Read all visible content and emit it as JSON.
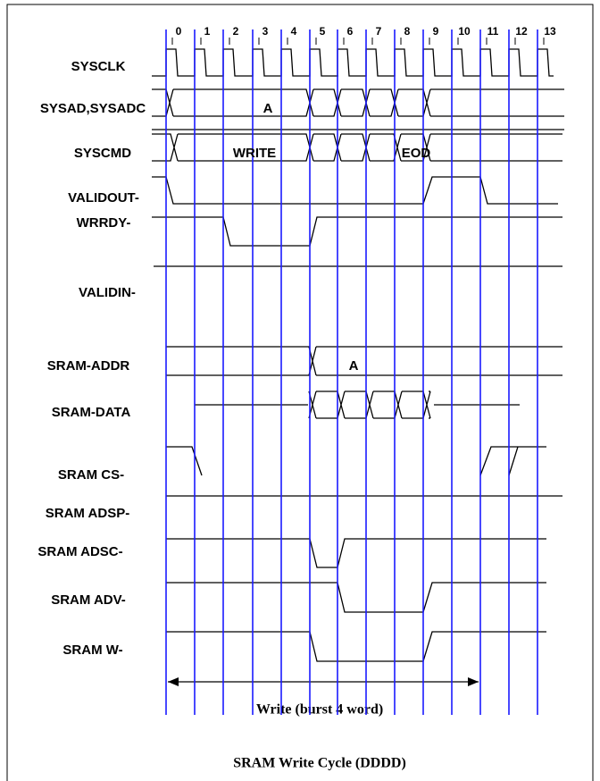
{
  "cycle_numbers": [
    "0",
    "1",
    "2",
    "3",
    "4",
    "5",
    "6",
    "7",
    "8",
    "9",
    "10",
    "11",
    "12",
    "13"
  ],
  "signals": [
    "SYSCLK",
    "SYSAD,SYSADC",
    "SYSCMD",
    "VALIDOUT-",
    "WRRDY-",
    "VALIDIN-",
    "SRAM-ADDR",
    "SRAM-DATA",
    "SRAM CS-",
    "SRAM ADSP-",
    "SRAM ADSC-",
    "SRAM ADV-",
    "SRAM W-"
  ],
  "annotations": [
    "A",
    "WRITE",
    "EOD",
    "A"
  ],
  "span_label": "Write (burst 4 word)",
  "title": "SRAM Write Cycle (DDDD)"
}
